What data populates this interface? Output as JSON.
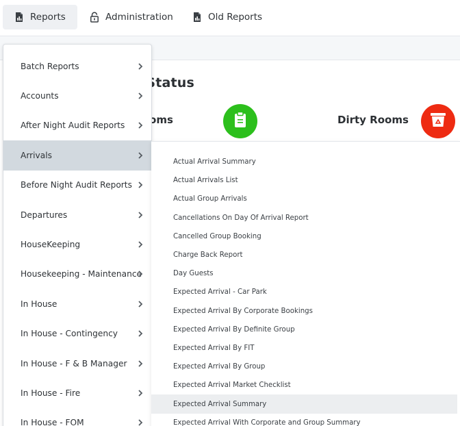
{
  "topnav": {
    "tabs": [
      {
        "label": "Reports",
        "icon": "report-file-icon",
        "active": true
      },
      {
        "label": "Administration",
        "icon": "lock-icon",
        "active": false
      },
      {
        "label": "Old Reports",
        "icon": "report-file-icon",
        "active": false
      }
    ]
  },
  "dashboard": {
    "title": "oom Status",
    "clean_label": "ean Rooms",
    "dirty_label": "Dirty Rooms",
    "clean_color": "#2cbf1c",
    "dirty_color": "#ee2b12"
  },
  "menu": {
    "items": [
      {
        "label": "Batch Reports"
      },
      {
        "label": "Accounts"
      },
      {
        "label": "After Night Audit Reports"
      },
      {
        "label": "Arrivals"
      },
      {
        "label": "Before Night Audit Reports"
      },
      {
        "label": "Departures"
      },
      {
        "label": "HouseKeeping"
      },
      {
        "label": "Housekeeping - Maintenance"
      },
      {
        "label": "In House"
      },
      {
        "label": "In House - Contingency"
      },
      {
        "label": "In House - F & B Manager"
      },
      {
        "label": "In House - Fire"
      },
      {
        "label": "In House - FOM"
      }
    ],
    "active_index": 3
  },
  "submenu": {
    "items": [
      {
        "label": "Actual Arrival Summary"
      },
      {
        "label": "Actual Arrivals List"
      },
      {
        "label": "Actual Group Arrivals"
      },
      {
        "label": "Cancellations On Day Of Arrival Report"
      },
      {
        "label": "Cancelled Group Booking"
      },
      {
        "label": "Charge Back Report"
      },
      {
        "label": "Day Guests"
      },
      {
        "label": "Expected Arrival - Car Park"
      },
      {
        "label": "Expected Arrival By Corporate Bookings"
      },
      {
        "label": "Expected Arrival By Definite Group"
      },
      {
        "label": "Expected Arrival By FIT"
      },
      {
        "label": "Expected Arrival By Group"
      },
      {
        "label": "Expected Arrival Market Checklist"
      },
      {
        "label": "Expected Arrival Summary"
      },
      {
        "label": "Expected Arrival With Corporate and Group Summary"
      }
    ],
    "hover_index": 13
  }
}
